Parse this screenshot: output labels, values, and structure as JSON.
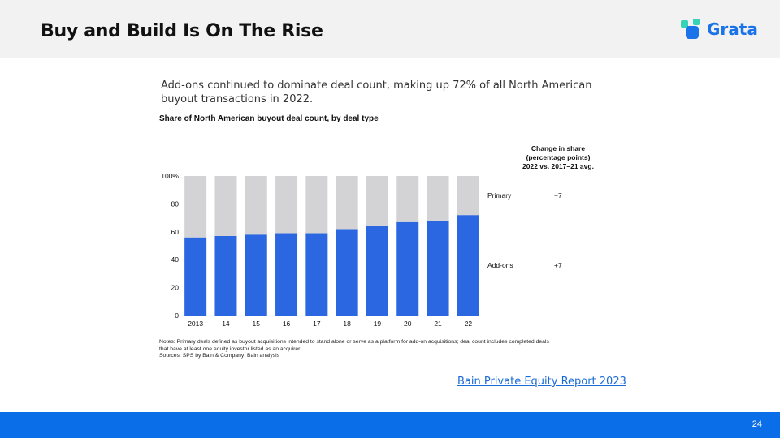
{
  "header": {
    "title": "Buy and Build Is On The Rise",
    "logo_text": "Grata"
  },
  "intro_text": "Add-ons continued to dominate deal count, making up 72% of all North American buyout transactions in 2022.",
  "change_header": {
    "line1": "Change in share",
    "line2": "(percentage points)",
    "line3": "2022 vs. 2017–21 avg."
  },
  "chart_data": {
    "type": "bar",
    "stacked": true,
    "title": "Share of North American buyout deal count, by deal type",
    "categories": [
      "2013",
      "14",
      "15",
      "16",
      "17",
      "18",
      "19",
      "20",
      "21",
      "22"
    ],
    "series": [
      {
        "name": "Add-ons",
        "color": "#2b67e0",
        "values": [
          56,
          57,
          58,
          59,
          59,
          62,
          64,
          67,
          68,
          72
        ]
      },
      {
        "name": "Primary",
        "color": "#d3d3d5",
        "values": [
          44,
          43,
          42,
          41,
          41,
          38,
          36,
          33,
          32,
          28
        ]
      }
    ],
    "y_ticks": [
      "100%",
      "80",
      "60",
      "40",
      "20",
      "0"
    ],
    "ylim": [
      0,
      100
    ],
    "change_in_share": [
      {
        "label": "Primary",
        "value": "−7"
      },
      {
        "label": "Add-ons",
        "value": "+7"
      }
    ]
  },
  "notes": {
    "line1": "Notes: Primary deals defined as buyout acquisitions intended to stand alone or serve as a platform for add-on acquisitions; deal count includes completed deals",
    "line2": "that have at least one equity investor listed as an acquirer",
    "line3": "Sources: SPS by Bain & Company; Bain analysis"
  },
  "source_link": "Bain Private Equity Report 2023",
  "footer": {
    "page_number": "24"
  },
  "colors": {
    "brand_blue": "#0a6ee8",
    "addon_blue": "#2b67e0",
    "primary_gray": "#d3d3d5"
  }
}
